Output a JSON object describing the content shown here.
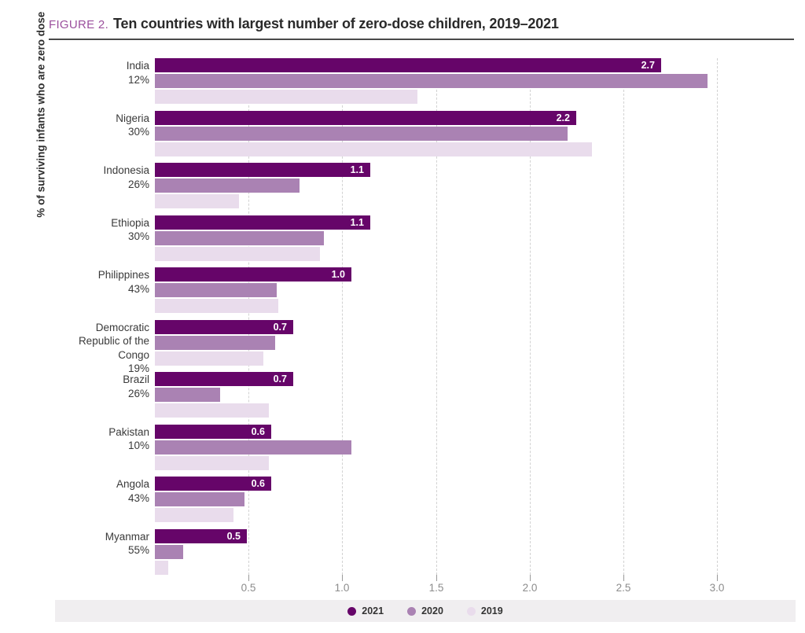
{
  "figure": {
    "label": "FIGURE 2.",
    "title": "Ten countries with largest number of zero-dose children, 2019–2021"
  },
  "y_axis_label": "% of surviving infants who are zero dose",
  "legend": {
    "position": "bottom-center",
    "items": [
      {
        "label": "2021",
        "color": "#660569"
      },
      {
        "label": "2020",
        "color": "#aa82b3"
      },
      {
        "label": "2019",
        "color": "#e9dcec"
      }
    ]
  },
  "colors": {
    "bar_2021": "#660569",
    "bar_2020": "#aa82b3",
    "bar_2019": "#e9dcec",
    "figure_label": "#9b4f9d",
    "grid": "#d2d2d2",
    "tick_text": "#8c8c8c",
    "legend_bg": "#f0eef0"
  },
  "chart_data": {
    "type": "bar",
    "orientation": "horizontal",
    "title": "Ten countries with largest number of zero-dose children, 2019–2021",
    "ylabel": "% of surviving infants who are zero dose",
    "grid": "dashed-vertical",
    "xlim": [
      0,
      3.2
    ],
    "x_ticks": [
      0.5,
      1.0,
      1.5,
      2.0,
      2.5,
      3.0
    ],
    "x_tick_labels": [
      "0.5",
      "1.0",
      "1.5",
      "2.0",
      "2.5",
      "3.0"
    ],
    "series_names": [
      "2021",
      "2020",
      "2019"
    ],
    "rows": [
      {
        "country": "India",
        "zero_dose_pct": "12%",
        "bar_label_2021": "2.7",
        "values": [
          2.7,
          2.95,
          1.4
        ]
      },
      {
        "country": "Nigeria",
        "zero_dose_pct": "30%",
        "bar_label_2021": "2.2",
        "values": [
          2.25,
          2.2,
          2.33
        ]
      },
      {
        "country": "Indonesia",
        "zero_dose_pct": "26%",
        "bar_label_2021": "1.1",
        "values": [
          1.15,
          0.77,
          0.45
        ]
      },
      {
        "country": "Ethiopia",
        "zero_dose_pct": "30%",
        "bar_label_2021": "1.1",
        "values": [
          1.15,
          0.9,
          0.88
        ]
      },
      {
        "country": "Philippines",
        "zero_dose_pct": "43%",
        "bar_label_2021": "1.0",
        "values": [
          1.05,
          0.65,
          0.66
        ]
      },
      {
        "country": "Democratic Republic of the Congo",
        "zero_dose_pct": "19%",
        "bar_label_2021": "0.7",
        "values": [
          0.74,
          0.64,
          0.58
        ]
      },
      {
        "country": "Brazil",
        "zero_dose_pct": "26%",
        "bar_label_2021": "0.7",
        "values": [
          0.74,
          0.35,
          0.61
        ]
      },
      {
        "country": "Pakistan",
        "zero_dose_pct": "10%",
        "bar_label_2021": "0.6",
        "values": [
          0.62,
          1.05,
          0.61
        ]
      },
      {
        "country": "Angola",
        "zero_dose_pct": "43%",
        "bar_label_2021": "0.6",
        "values": [
          0.62,
          0.48,
          0.42
        ]
      },
      {
        "country": "Myanmar",
        "zero_dose_pct": "55%",
        "bar_label_2021": "0.5",
        "values": [
          0.49,
          0.15,
          0.07
        ]
      }
    ]
  }
}
